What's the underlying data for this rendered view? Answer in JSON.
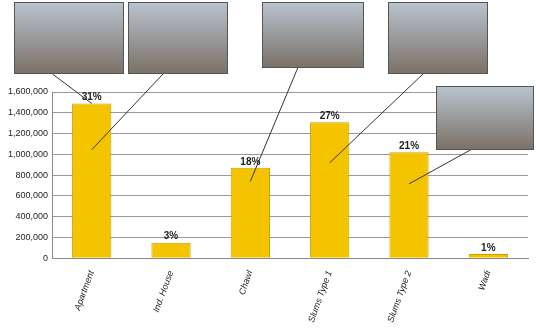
{
  "chart_data": {
    "type": "bar",
    "categories": [
      "Apartment",
      "Ind. House",
      "Chawl",
      "Slums Type 1",
      "Slums Type 2",
      "Wadi"
    ],
    "values": [
      1490000,
      150000,
      870000,
      1310000,
      1020000,
      40000
    ],
    "value_labels": [
      "31%",
      "3%",
      "18%",
      "27%",
      "21%",
      "1%"
    ],
    "data_labels": true,
    "color": "#f5c400",
    "ylim": [
      0,
      1600000
    ],
    "yticks": [
      {
        "value": 0,
        "label": "0"
      },
      {
        "value": 200000,
        "label": "200,000"
      },
      {
        "value": 400000,
        "label": "400,000"
      },
      {
        "value": 600000,
        "label": "600,000"
      },
      {
        "value": 800000,
        "label": "800,000"
      },
      {
        "value": 1000000,
        "label": "1,000,000"
      },
      {
        "value": 1200000,
        "label": "1,200,000"
      },
      {
        "value": 1400000,
        "label": "1,400,000"
      },
      {
        "value": 1600000,
        "label": "1,600,000"
      }
    ],
    "grid": true
  }
}
